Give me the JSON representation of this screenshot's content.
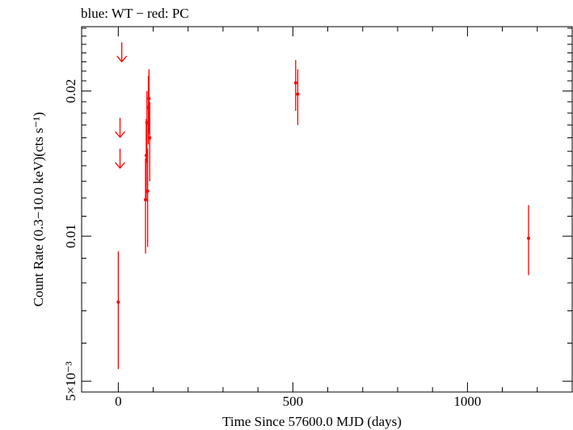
{
  "chart_data": {
    "type": "scatter",
    "title": "blue: WT − red: PC",
    "xlabel": "Time Since 57600.0 MJD (days)",
    "ylabel": "Count Rate (0.3−10.0 keV)(cts s⁻¹)",
    "xlim": [
      -105,
      1300
    ],
    "ylim": [
      0.00475,
      0.0272
    ],
    "yscale": "log",
    "x_ticks": [
      {
        "value": 0,
        "label": "0"
      },
      {
        "value": 500,
        "label": "500"
      },
      {
        "value": 1000,
        "label": "1000"
      }
    ],
    "y_ticks": [
      {
        "value": 0.005,
        "label": "5×10⁻³"
      },
      {
        "value": 0.01,
        "label": "0.01"
      },
      {
        "value": 0.02,
        "label": "0.02"
      }
    ],
    "grid": false,
    "series": [
      {
        "color": "#ff0000",
        "points": [
          {
            "x": 0,
            "y": 0.0073,
            "ylo": 0.0053,
            "yhi": 0.0093
          },
          {
            "x": 78,
            "y": 0.0119,
            "ylo": 0.0092,
            "yhi": 0.0145
          },
          {
            "x": 80,
            "y": 0.0147,
            "ylo": 0.0118,
            "yhi": 0.0175
          },
          {
            "x": 82,
            "y": 0.0172,
            "ylo": 0.0142,
            "yhi": 0.02
          },
          {
            "x": 84,
            "y": 0.0124,
            "ylo": 0.0095,
            "yhi": 0.0152
          },
          {
            "x": 86,
            "y": 0.0185,
            "ylo": 0.0155,
            "yhi": 0.0215
          },
          {
            "x": 88,
            "y": 0.0193,
            "ylo": 0.0163,
            "yhi": 0.0222
          },
          {
            "x": 90,
            "y": 0.016,
            "ylo": 0.013,
            "yhi": 0.019
          },
          {
            "x": 508,
            "y": 0.0208,
            "ylo": 0.0182,
            "yhi": 0.0232
          },
          {
            "x": 514,
            "y": 0.0197,
            "ylo": 0.017,
            "yhi": 0.0222
          },
          {
            "x": 1175,
            "y": 0.0099,
            "ylo": 0.0083,
            "yhi": 0.0116
          }
        ],
        "upper_limits": [
          {
            "x": 10,
            "y": 0.0241
          },
          {
            "x": 5,
            "y": 0.0168
          },
          {
            "x": 5,
            "y": 0.0145
          }
        ]
      }
    ]
  }
}
